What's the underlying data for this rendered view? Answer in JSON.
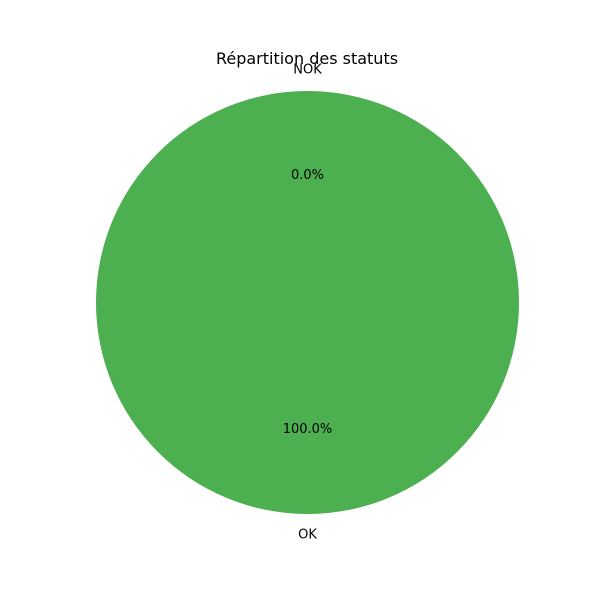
{
  "chart_data": {
    "type": "pie",
    "title": "Répartition des statuts",
    "slices": [
      {
        "label": "NOK",
        "value": 0.0,
        "pct_label": "0.0%",
        "color": "#e53935"
      },
      {
        "label": "OK",
        "value": 100.0,
        "pct_label": "100.0%",
        "color": "#4caf50"
      }
    ],
    "legend": "none",
    "start_angle_deg": 90,
    "direction": "counterclockwise"
  }
}
